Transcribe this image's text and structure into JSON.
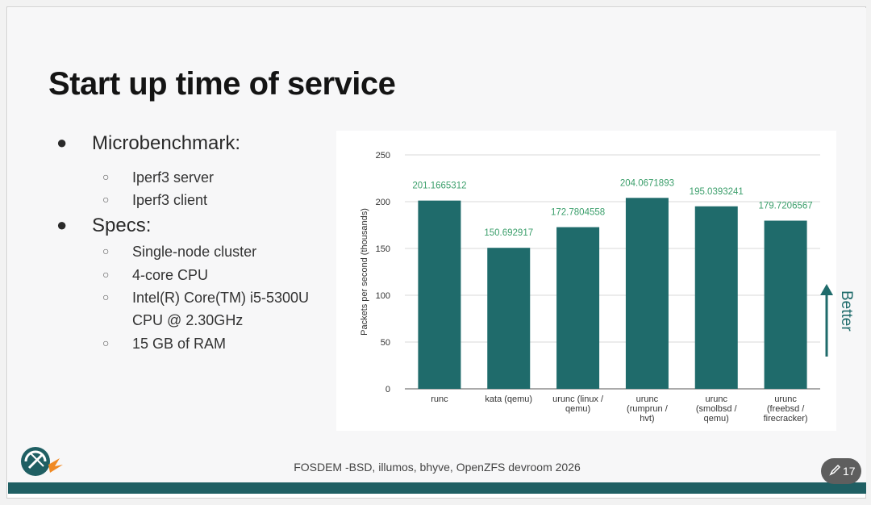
{
  "slide": {
    "title": "Start up time of service",
    "bullets": [
      {
        "label": "Microbenchmark:",
        "subs": [
          "Iperf3 server",
          "Iperf3 client"
        ]
      },
      {
        "label": "Specs:",
        "subs": [
          "Single-node cluster",
          "4-core CPU",
          "Intel(R) Core(TM) i5-5300U",
          "CPU @ 2.30GHz",
          "15 GB of RAM"
        ]
      }
    ],
    "footer": "FOSDEM -BSD, illumos, bhyve, OpenZFS devroom 2026",
    "page_number": "17",
    "better_label": "Better"
  },
  "colors": {
    "bar": "#1f6b6b",
    "value_label": "#3a9e6a",
    "footer_bar": "#1f5f63",
    "arrow": "#1f6b6b"
  },
  "chart_data": {
    "type": "bar",
    "title": "",
    "xlabel": "",
    "ylabel": "Packets per second (thousands)",
    "categories": [
      [
        "runc"
      ],
      [
        "kata (qemu)"
      ],
      [
        "urunc (linux /",
        "qemu)"
      ],
      [
        "urunc",
        "(rumprun /",
        "hvt)"
      ],
      [
        "urunc",
        "(smolbsd /",
        "qemu)"
      ],
      [
        "urunc",
        "(freebsd /",
        "firecracker)"
      ]
    ],
    "values": [
      201.1665312,
      150.692917,
      172.7804558,
      204.0671893,
      195.0393241,
      179.7206567
    ],
    "value_labels": [
      "201.1665312",
      "150.692917",
      "172.7804558",
      "204.0671893",
      "195.0393241",
      "179.7206567"
    ],
    "ylim": [
      0,
      250
    ],
    "yticks": [
      0,
      50,
      100,
      150,
      200,
      250
    ],
    "grid": true
  }
}
